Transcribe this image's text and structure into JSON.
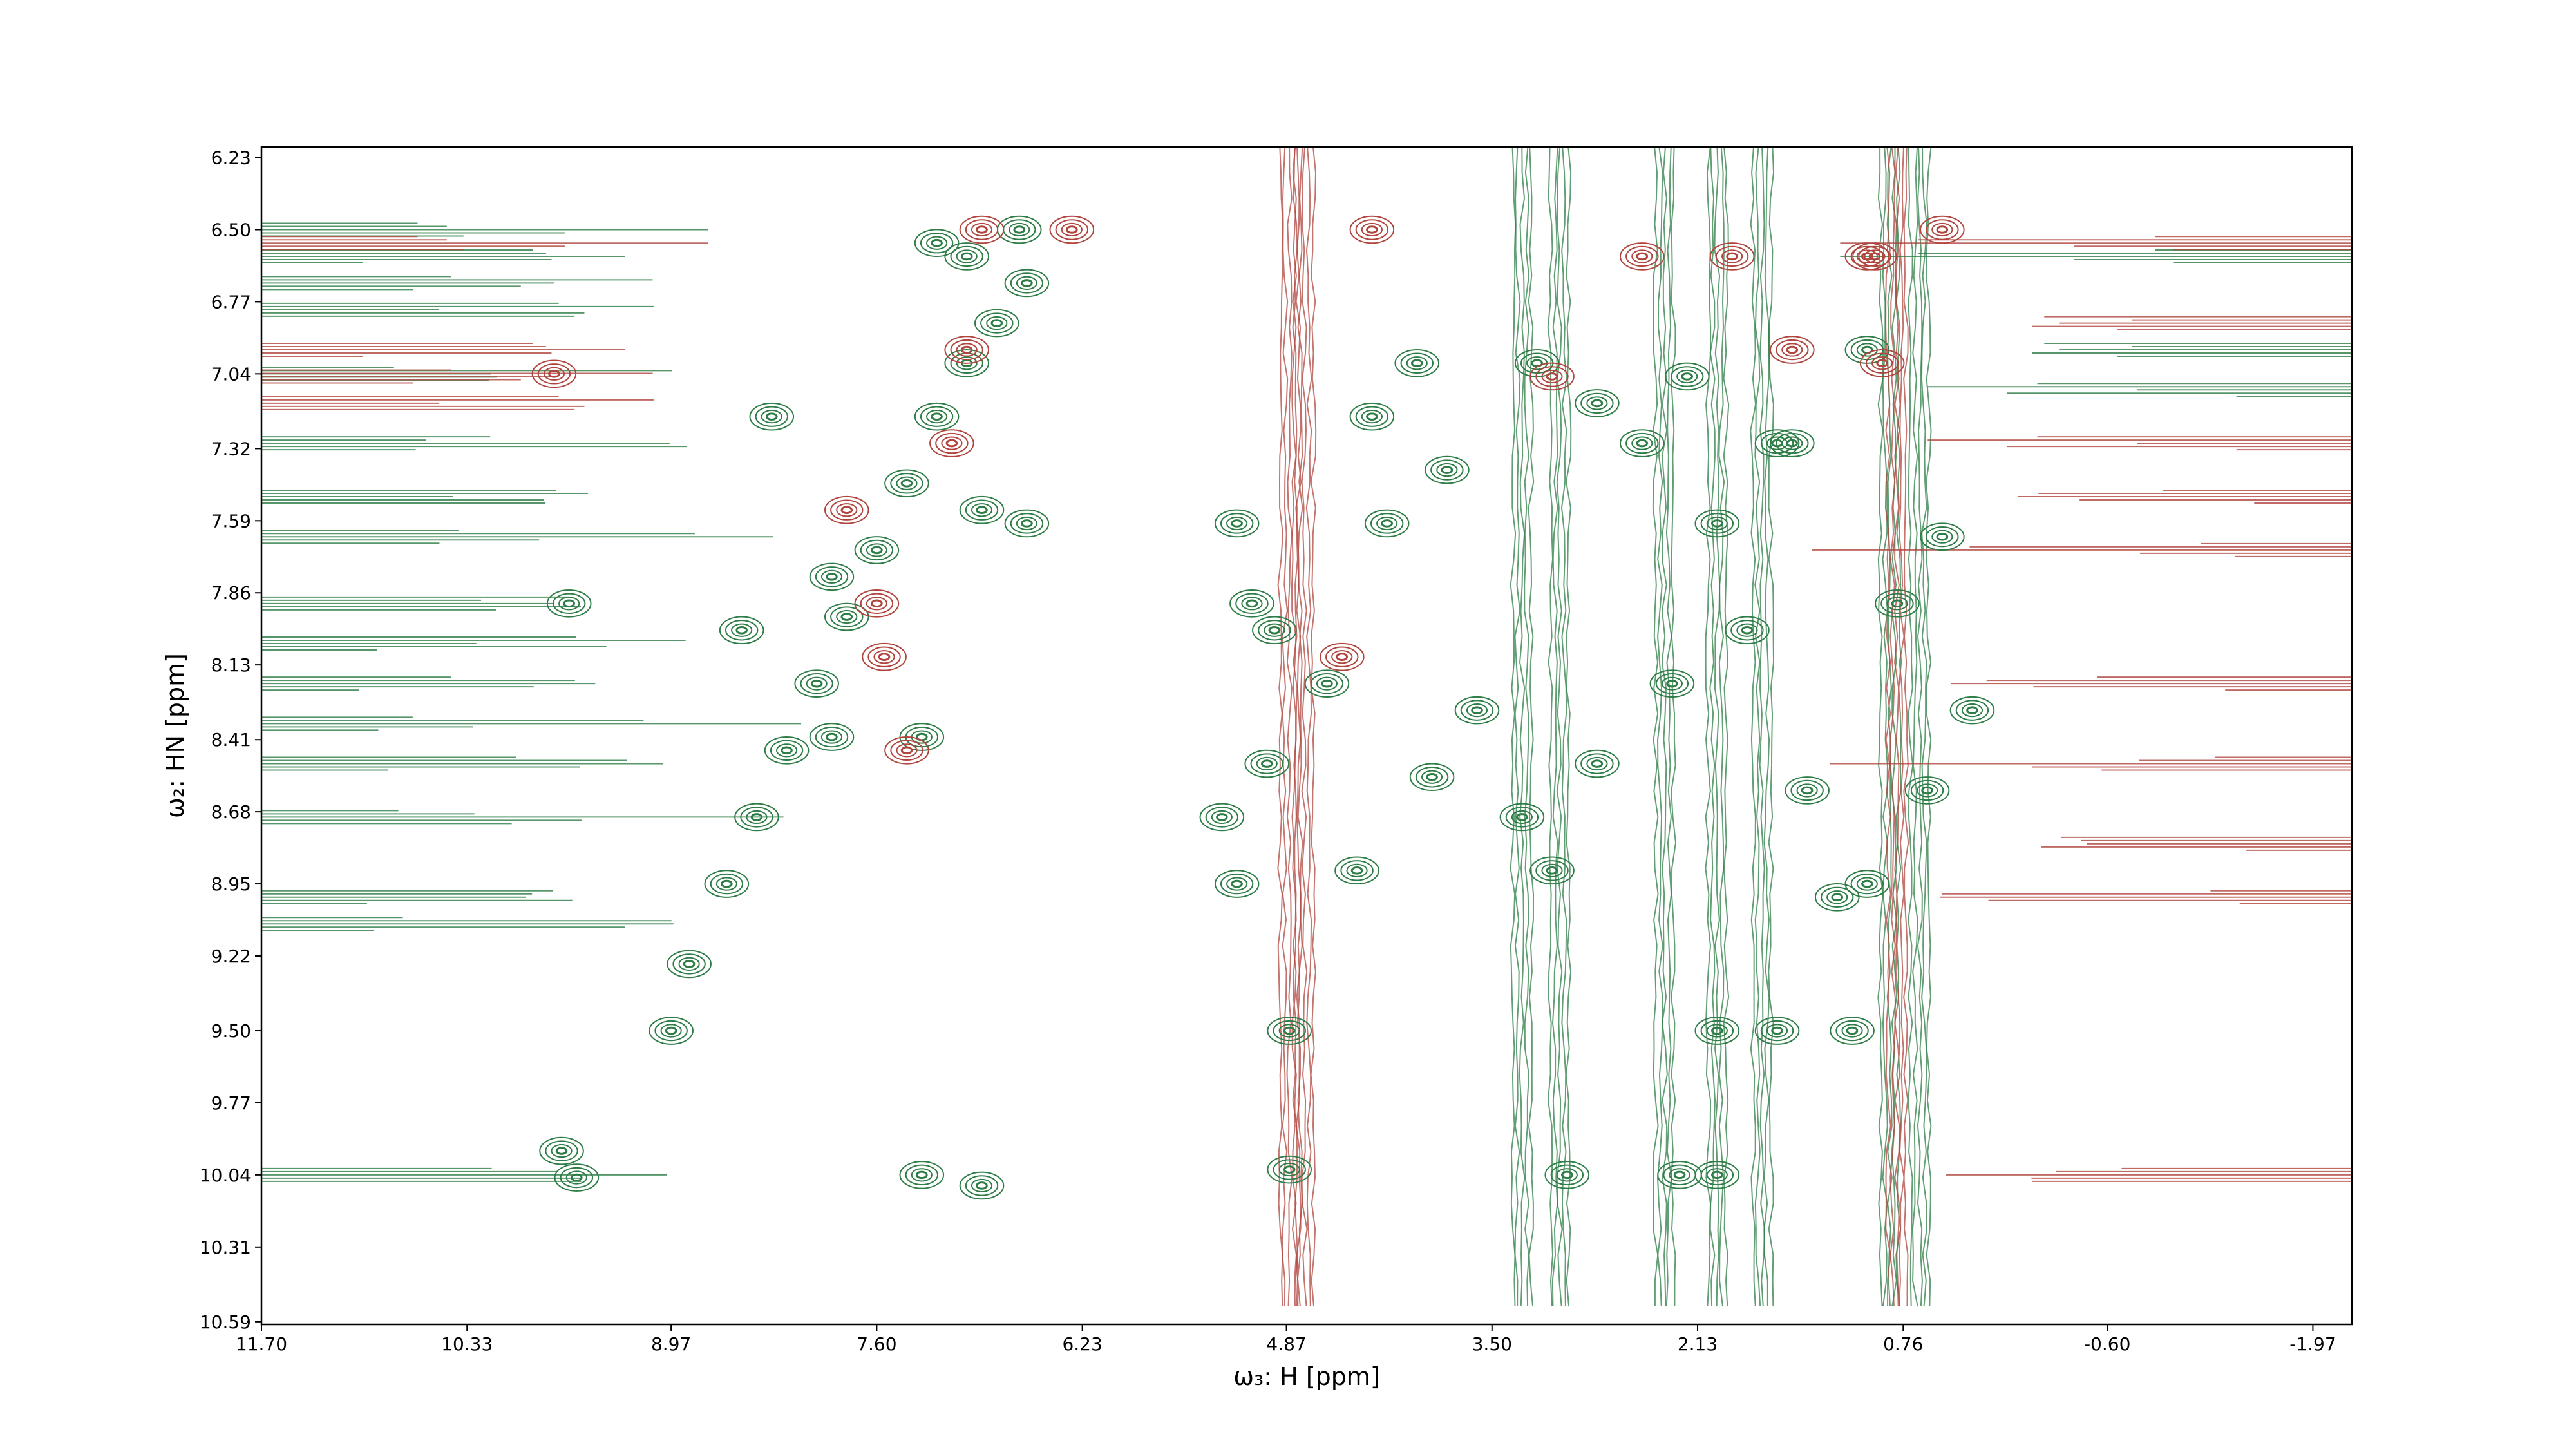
{
  "chart_data": {
    "type": "contour",
    "x_label": "ω₃: H [ppm]",
    "y_label": "ω₂: HN [ppm]",
    "xlim": [
      11.7,
      -2.23
    ],
    "ylim": [
      6.19,
      10.6
    ],
    "xticks": [
      {
        "value": 11.7,
        "label": "11.70"
      },
      10.33,
      8.97,
      {
        "value": 7.6,
        "label": "7.60"
      },
      6.23,
      4.87,
      {
        "value": 3.5,
        "label": "3.50"
      },
      2.13,
      0.76,
      {
        "value": -0.6,
        "label": "-0.60"
      },
      -1.97
    ],
    "yticks": [
      6.23,
      {
        "value": 6.5,
        "label": "6.50"
      },
      6.77,
      7.04,
      7.32,
      7.59,
      7.86,
      8.13,
      8.41,
      8.68,
      8.95,
      9.22,
      {
        "value": 9.5,
        "label": "9.50"
      },
      9.77,
      10.04,
      10.31,
      10.59
    ],
    "series": [
      {
        "color": "#2e7d46",
        "x": [
          8.85,
          8.6,
          8.4,
          8.2,
          8.0,
          7.8,
          7.6,
          7.4,
          7.2,
          7.0,
          6.8,
          6.6,
          9.6,
          9.7,
          8.97,
          9.65,
          6.6,
          7.2,
          6.65,
          7.0,
          7.3,
          6.9,
          4.85,
          4.85,
          3.0,
          2.25,
          2.0,
          5.3,
          5.2,
          4.95,
          4.2,
          3.8,
          4.4,
          3.6,
          2.8,
          2.3,
          1.8,
          1.4,
          1.0,
          1.2,
          0.8,
          0.5,
          0.3,
          2.5,
          2.0,
          1.5,
          1.0,
          4.3,
          4.0,
          3.2,
          2.8,
          2.2,
          1.6,
          5.2,
          5.0,
          3.9,
          3.3,
          1.6,
          1.1,
          2.0,
          0.6,
          7.9,
          8.5,
          7.9,
          7.3,
          6.9,
          8.3,
          5.1,
          4.6,
          3.1
        ],
        "y": [
          9.25,
          8.95,
          8.7,
          8.45,
          8.2,
          7.95,
          7.7,
          7.45,
          7.2,
          7.0,
          6.85,
          6.7,
          10.05,
          9.95,
          9.5,
          7.9,
          7.6,
          6.55,
          6.5,
          6.6,
          10.04,
          10.08,
          10.02,
          9.5,
          10.04,
          10.04,
          10.04,
          8.7,
          8.95,
          8.0,
          7.6,
          7.4,
          8.9,
          8.3,
          8.5,
          8.2,
          8.0,
          8.6,
          8.95,
          9.0,
          7.9,
          7.65,
          8.3,
          7.3,
          7.6,
          7.3,
          6.95,
          7.2,
          7.0,
          7.0,
          7.15,
          7.05,
          7.3,
          7.6,
          8.5,
          8.55,
          8.7,
          9.5,
          9.5,
          9.5,
          8.6,
          8.4,
          8.0,
          7.8,
          8.4,
          7.55,
          7.2,
          7.9,
          8.2,
          8.9
        ]
      },
      {
        "color": "#b0453e",
        "x": [
          7.55,
          7.4,
          7.8,
          7.1,
          7.0,
          6.9,
          3.1,
          2.5,
          1.9,
          1.0,
          0.9,
          1.5,
          0.5,
          9.75,
          4.3,
          6.3,
          4.5,
          0.95,
          7.6
        ],
        "y": [
          8.1,
          8.45,
          7.55,
          7.3,
          6.95,
          6.5,
          7.05,
          6.6,
          6.6,
          6.6,
          7.0,
          6.95,
          6.5,
          7.04,
          6.5,
          6.5,
          8.1,
          6.6,
          7.9
        ]
      }
    ],
    "v_ridges": {
      "positive": [
        3.3,
        3.05,
        2.35,
        2.0,
        1.7,
        0.85,
        0.65
      ],
      "negative": [
        4.85,
        4.75,
        0.8
      ]
    },
    "h_ridges_left": {
      "positive": [
        6.5,
        6.6,
        6.7,
        6.8,
        7.04,
        7.3,
        7.5,
        7.65,
        7.9,
        8.05,
        8.2,
        8.35,
        8.5,
        8.7,
        9.0,
        9.1,
        10.04
      ],
      "negative": [
        6.55,
        6.95,
        7.05,
        7.15
      ]
    },
    "h_ridges_right": {
      "positive": [
        6.6,
        6.95,
        7.1
      ],
      "negative": [
        6.55,
        6.85,
        7.3,
        7.5,
        7.7,
        8.2,
        8.5,
        8.8,
        9.0,
        10.04
      ]
    }
  }
}
